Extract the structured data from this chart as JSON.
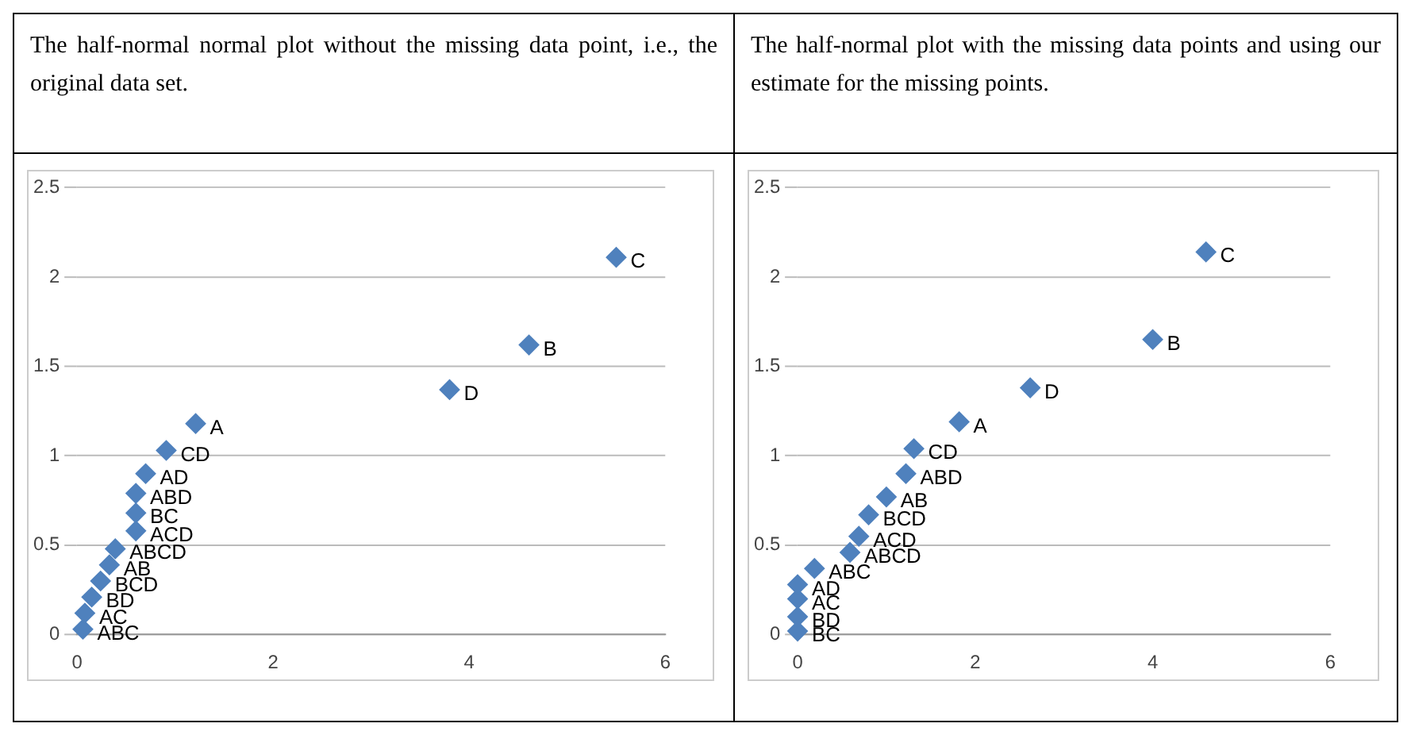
{
  "chart_data": [
    {
      "type": "scatter",
      "title": "The half-normal normal plot without the missing data point, i.e., the original data set.",
      "x": [
        0.06,
        0.08,
        0.15,
        0.24,
        0.33,
        0.39,
        0.6,
        0.6,
        0.6,
        0.7,
        0.91,
        1.21,
        3.8,
        4.61,
        5.5
      ],
      "series": [
        {
          "color": "#4f81bd",
          "values": [
            0.03,
            0.12,
            0.21,
            0.3,
            0.39,
            0.48,
            0.58,
            0.68,
            0.79,
            0.9,
            1.03,
            1.18,
            1.37,
            1.62,
            2.11
          ]
        }
      ],
      "annotations": [
        {
          "text": "ABC",
          "x": 0.06,
          "y": 0.03
        },
        {
          "text": "AC",
          "x": 0.08,
          "y": 0.12
        },
        {
          "text": "BD",
          "x": 0.15,
          "y": 0.21
        },
        {
          "text": "BCD",
          "x": 0.24,
          "y": 0.3
        },
        {
          "text": "AB",
          "x": 0.33,
          "y": 0.39
        },
        {
          "text": "ABCD",
          "x": 0.39,
          "y": 0.48
        },
        {
          "text": "ACD",
          "x": 0.6,
          "y": 0.58
        },
        {
          "text": "BC",
          "x": 0.6,
          "y": 0.68
        },
        {
          "text": "ABD",
          "x": 0.6,
          "y": 0.79
        },
        {
          "text": "AD",
          "x": 0.7,
          "y": 0.9
        },
        {
          "text": "CD",
          "x": 0.91,
          "y": 1.03
        },
        {
          "text": "A",
          "x": 1.21,
          "y": 1.18
        },
        {
          "text": "D",
          "x": 3.8,
          "y": 1.37
        },
        {
          "text": "B",
          "x": 4.61,
          "y": 1.62
        },
        {
          "text": "C",
          "x": 5.5,
          "y": 2.11
        }
      ],
      "xlim": [
        0,
        6
      ],
      "xticks": [
        0,
        2,
        4,
        6
      ],
      "ylim": [
        0,
        2.5
      ],
      "yticks": [
        0,
        0.5,
        1,
        1.5,
        2,
        2.5
      ],
      "grid": "y",
      "marker": "diamond"
    },
    {
      "type": "scatter",
      "title": "The half-normal plot with the missing data points and using our estimate for the missing points.",
      "x": [
        0.0,
        0.0,
        0.0,
        0.0,
        0.19,
        0.59,
        0.69,
        0.8,
        1.0,
        1.22,
        1.31,
        1.82,
        2.62,
        4.0,
        4.6
      ],
      "series": [
        {
          "color": "#4f81bd",
          "values": [
            0.02,
            0.1,
            0.2,
            0.28,
            0.37,
            0.46,
            0.55,
            0.67,
            0.77,
            0.9,
            1.04,
            1.19,
            1.38,
            1.65,
            2.14
          ]
        }
      ],
      "annotations": [
        {
          "text": "BC",
          "x": 0.0,
          "y": 0.02
        },
        {
          "text": "BD",
          "x": 0.0,
          "y": 0.1
        },
        {
          "text": "AC",
          "x": 0.0,
          "y": 0.2
        },
        {
          "text": "AD",
          "x": 0.0,
          "y": 0.28
        },
        {
          "text": "ABC",
          "x": 0.19,
          "y": 0.37
        },
        {
          "text": "ABCD",
          "x": 0.59,
          "y": 0.46
        },
        {
          "text": "ACD",
          "x": 0.69,
          "y": 0.55
        },
        {
          "text": "BCD",
          "x": 0.8,
          "y": 0.67
        },
        {
          "text": "AB",
          "x": 1.0,
          "y": 0.77
        },
        {
          "text": "ABD",
          "x": 1.22,
          "y": 0.9
        },
        {
          "text": "CD",
          "x": 1.31,
          "y": 1.04
        },
        {
          "text": "A",
          "x": 1.82,
          "y": 1.19
        },
        {
          "text": "D",
          "x": 2.62,
          "y": 1.38
        },
        {
          "text": "B",
          "x": 4.0,
          "y": 1.65
        },
        {
          "text": "C",
          "x": 4.6,
          "y": 2.14
        }
      ],
      "xlim": [
        0,
        6
      ],
      "xticks": [
        0,
        2,
        4,
        6
      ],
      "ylim": [
        0,
        2.5
      ],
      "yticks": [
        0,
        0.5,
        1,
        1.5,
        2,
        2.5
      ],
      "grid": "y",
      "marker": "diamond"
    }
  ]
}
